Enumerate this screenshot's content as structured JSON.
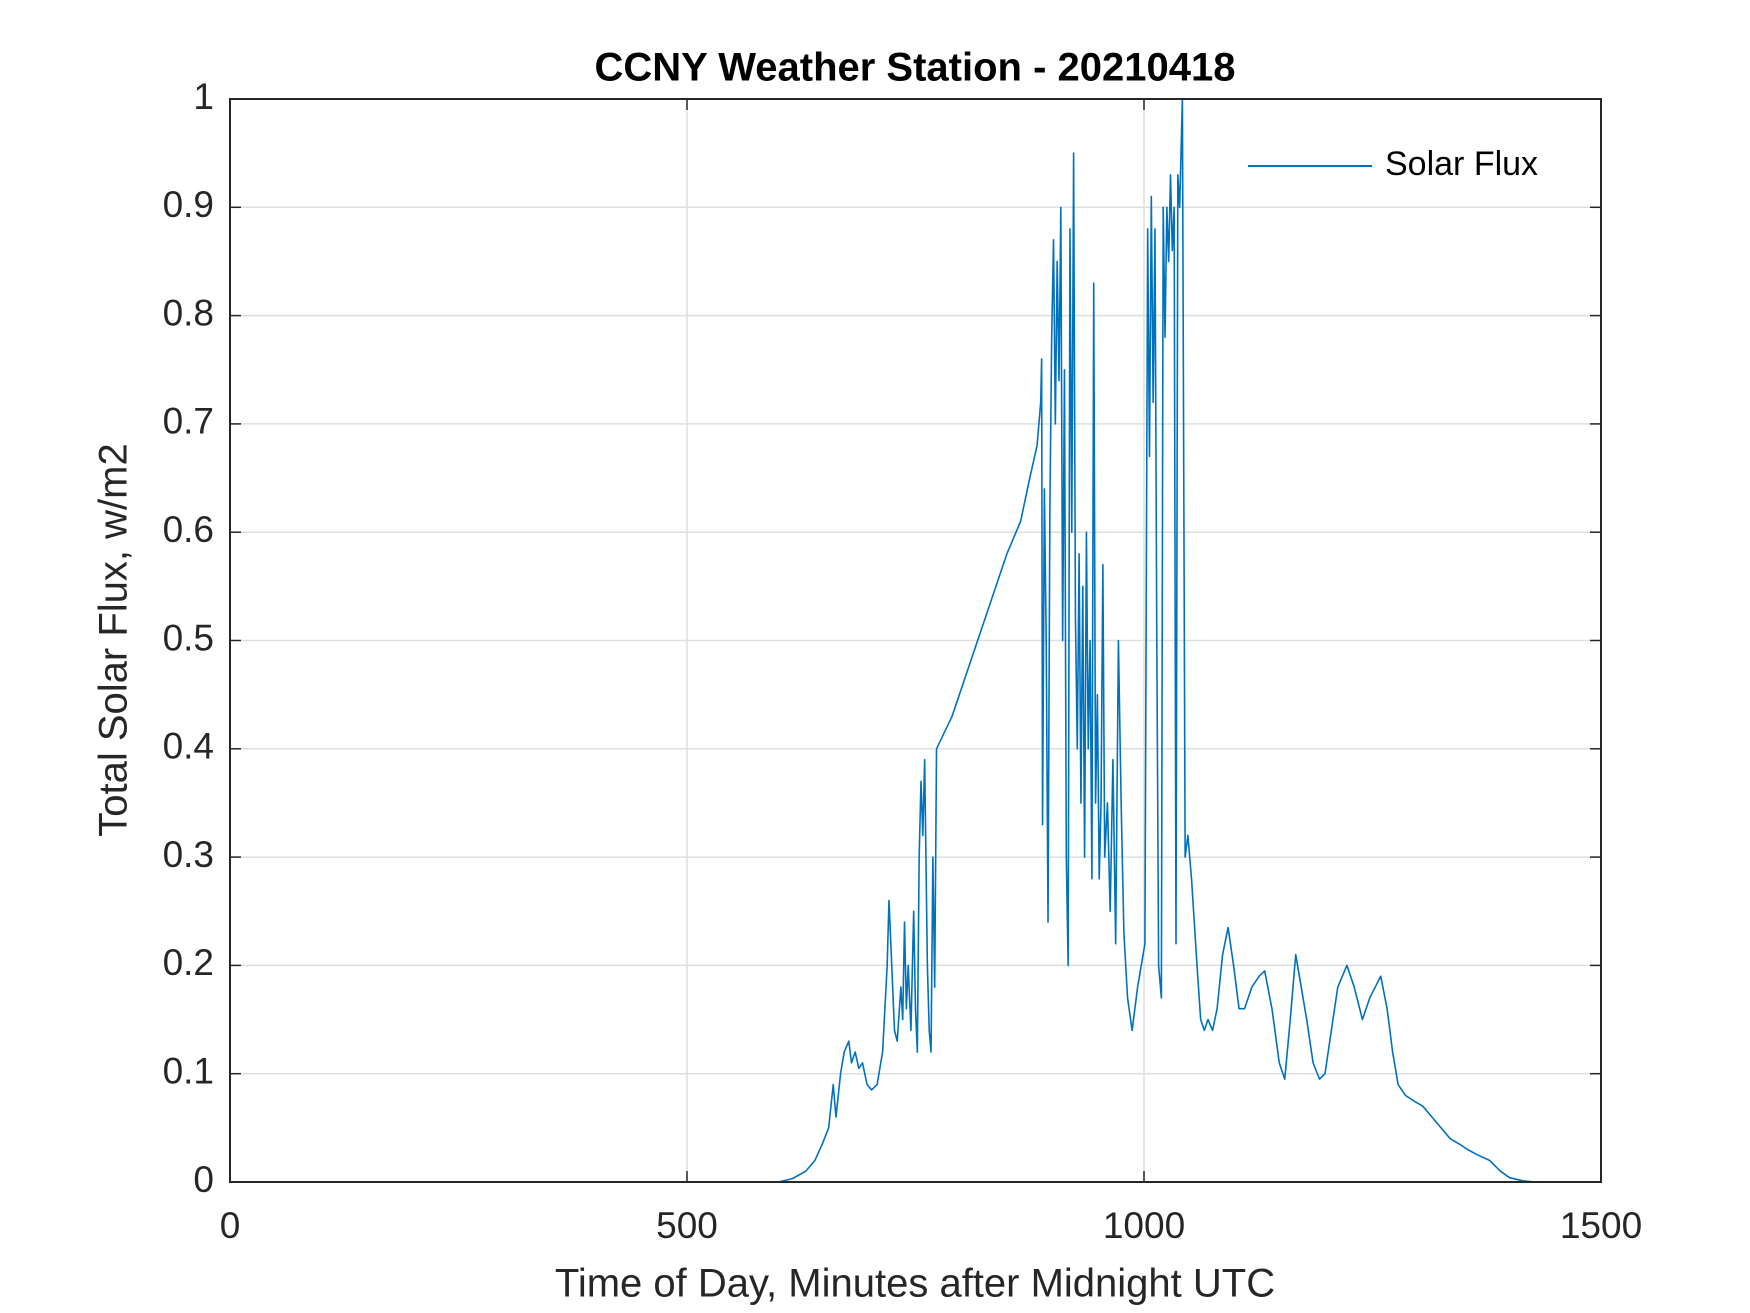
{
  "chart_data": {
    "type": "line",
    "title": "CCNY Weather Station - 20210418",
    "xlabel": "Time of Day, Minutes after Midnight UTC",
    "ylabel": "Total Solar Flux, w/m2",
    "x": [
      0,
      600,
      615,
      630,
      640,
      648,
      655,
      660,
      663,
      668,
      672,
      677,
      680,
      684,
      688,
      692,
      697,
      702,
      708,
      714,
      719,
      721,
      724,
      727,
      730,
      734,
      736,
      738,
      740,
      742,
      745,
      748,
      750,
      752,
      754,
      756,
      758,
      760,
      763,
      765,
      767,
      769,
      771,
      773,
      790,
      810,
      830,
      850,
      865,
      875,
      883,
      887,
      888,
      889,
      891,
      893,
      895,
      897,
      899,
      901,
      903,
      905,
      907,
      909,
      911,
      913,
      915,
      917,
      919,
      921,
      923,
      925,
      927,
      929,
      931,
      933,
      935,
      937,
      939,
      941,
      943,
      945,
      947,
      949,
      951,
      953,
      955,
      957,
      960,
      963,
      966,
      969,
      972,
      975,
      978,
      982,
      987,
      993,
      1001,
      1004,
      1006,
      1008,
      1010,
      1012,
      1014,
      1016,
      1019,
      1021,
      1023,
      1025,
      1027,
      1029,
      1031,
      1033,
      1035,
      1037,
      1039,
      1042,
      1045,
      1048,
      1052,
      1058,
      1062,
      1066,
      1070,
      1075,
      1080,
      1086,
      1092,
      1098,
      1104,
      1110,
      1118,
      1126,
      1132,
      1140,
      1148,
      1154,
      1160,
      1166,
      1172,
      1178,
      1185,
      1192,
      1198,
      1205,
      1212,
      1222,
      1230,
      1239,
      1247,
      1253,
      1259,
      1266,
      1272,
      1278,
      1286,
      1295,
      1305,
      1315,
      1325,
      1335,
      1345,
      1354,
      1365,
      1378,
      1390,
      1400,
      1415,
      1428
    ],
    "series": [
      {
        "name": "Solar Flux",
        "color": "#0072bd",
        "values": [
          0,
          0,
          0.003,
          0.01,
          0.02,
          0.035,
          0.05,
          0.09,
          0.06,
          0.1,
          0.12,
          0.13,
          0.11,
          0.12,
          0.105,
          0.11,
          0.09,
          0.085,
          0.09,
          0.12,
          0.2,
          0.26,
          0.2,
          0.14,
          0.13,
          0.18,
          0.15,
          0.24,
          0.16,
          0.2,
          0.14,
          0.25,
          0.16,
          0.12,
          0.3,
          0.37,
          0.32,
          0.39,
          0.2,
          0.14,
          0.12,
          0.3,
          0.18,
          0.4,
          0.43,
          0.48,
          0.53,
          0.58,
          0.61,
          0.65,
          0.68,
          0.72,
          0.76,
          0.33,
          0.64,
          0.5,
          0.24,
          0.62,
          0.78,
          0.87,
          0.7,
          0.85,
          0.74,
          0.9,
          0.5,
          0.75,
          0.3,
          0.2,
          0.88,
          0.6,
          0.95,
          0.52,
          0.4,
          0.58,
          0.35,
          0.55,
          0.3,
          0.6,
          0.4,
          0.5,
          0.28,
          0.83,
          0.35,
          0.45,
          0.28,
          0.35,
          0.57,
          0.3,
          0.35,
          0.25,
          0.39,
          0.22,
          0.5,
          0.35,
          0.23,
          0.17,
          0.14,
          0.18,
          0.22,
          0.88,
          0.67,
          0.91,
          0.72,
          0.88,
          0.5,
          0.2,
          0.17,
          0.9,
          0.78,
          0.9,
          0.85,
          0.93,
          0.86,
          0.9,
          0.22,
          0.93,
          0.9,
          1.0,
          0.3,
          0.32,
          0.28,
          0.2,
          0.15,
          0.14,
          0.15,
          0.14,
          0.16,
          0.21,
          0.235,
          0.2,
          0.16,
          0.16,
          0.18,
          0.19,
          0.195,
          0.16,
          0.11,
          0.095,
          0.15,
          0.21,
          0.18,
          0.15,
          0.11,
          0.095,
          0.1,
          0.14,
          0.18,
          0.2,
          0.18,
          0.15,
          0.17,
          0.18,
          0.19,
          0.16,
          0.12,
          0.09,
          0.08,
          0.075,
          0.07,
          0.06,
          0.05,
          0.04,
          0.035,
          0.03,
          0.025,
          0.02,
          0.01,
          0.004,
          0.001,
          0
        ]
      }
    ],
    "xlim": [
      0,
      1500
    ],
    "xticks": [
      0,
      500,
      1000,
      1500
    ],
    "ylim": [
      0,
      1
    ],
    "yticks": [
      0,
      0.1,
      0.2,
      0.3,
      0.4,
      0.5,
      0.6,
      0.7,
      0.8,
      0.9,
      1
    ],
    "grid": true,
    "legend": "top-right"
  }
}
